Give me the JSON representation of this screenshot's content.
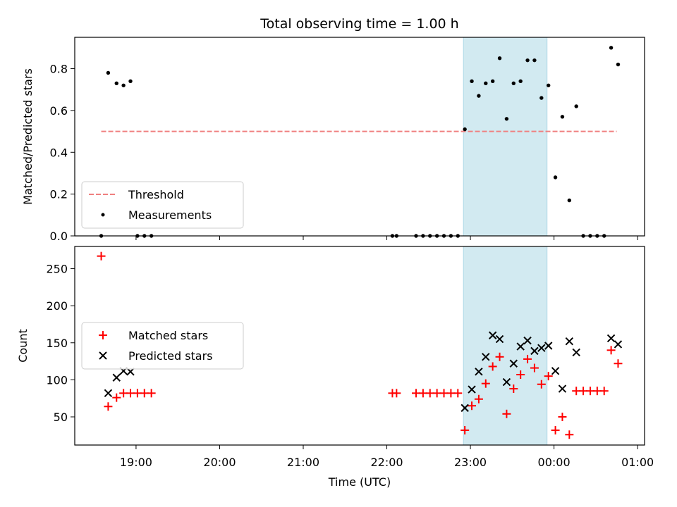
{
  "title": "Total observing time = 1.00 h",
  "colors": {
    "threshold": "#f08080",
    "measurement": "#000000",
    "matched": "#ff0000",
    "predicted": "#000000",
    "span": "#add8e6"
  },
  "chart_data": [
    {
      "type": "scatter",
      "ylabel": "Matched/Predicted stars",
      "xlabel": "",
      "ylim": [
        0,
        0.95
      ],
      "yticks": [
        0.0,
        0.2,
        0.4,
        0.6,
        0.8
      ],
      "ytick_labels": [
        "0.0",
        "0.2",
        "0.4",
        "0.6",
        "0.8"
      ],
      "legend": {
        "placement": "lower-left",
        "entries": [
          "Threshold",
          "Measurements"
        ]
      },
      "threshold": {
        "name": "Threshold",
        "y": 0.5,
        "x_start": "18:35",
        "x_end": "00:45"
      },
      "span": {
        "start": "22:55",
        "end": "23:55"
      },
      "series": [
        {
          "name": "Measurements",
          "points": [
            [
              "18:35",
              0.0
            ],
            [
              "18:40",
              0.78
            ],
            [
              "18:46",
              0.73
            ],
            [
              "18:51",
              0.72
            ],
            [
              "18:56",
              0.74
            ],
            [
              "19:01",
              0.0
            ],
            [
              "19:06",
              0.0
            ],
            [
              "19:11",
              0.0
            ],
            [
              "22:04",
              0.0
            ],
            [
              "22:07",
              0.0
            ],
            [
              "22:21",
              0.0
            ],
            [
              "22:26",
              0.0
            ],
            [
              "22:31",
              0.0
            ],
            [
              "22:36",
              0.0
            ],
            [
              "22:41",
              0.0
            ],
            [
              "22:46",
              0.0
            ],
            [
              "22:51",
              0.0
            ],
            [
              "22:56",
              0.51
            ],
            [
              "23:01",
              0.74
            ],
            [
              "23:06",
              0.67
            ],
            [
              "23:11",
              0.73
            ],
            [
              "23:16",
              0.74
            ],
            [
              "23:21",
              0.85
            ],
            [
              "23:26",
              0.56
            ],
            [
              "23:31",
              0.73
            ],
            [
              "23:36",
              0.74
            ],
            [
              "23:41",
              0.84
            ],
            [
              "23:46",
              0.84
            ],
            [
              "23:51",
              0.66
            ],
            [
              "23:56",
              0.72
            ],
            [
              "00:01",
              0.28
            ],
            [
              "00:06",
              0.57
            ],
            [
              "00:11",
              0.17
            ],
            [
              "00:16",
              0.62
            ],
            [
              "00:21",
              0.0
            ],
            [
              "00:26",
              0.0
            ],
            [
              "00:31",
              0.0
            ],
            [
              "00:36",
              0.0
            ],
            [
              "00:41",
              0.9
            ],
            [
              "00:46",
              0.82
            ]
          ]
        }
      ]
    },
    {
      "type": "scatter",
      "ylabel": "Count",
      "xlabel": "Time (UTC)",
      "ylim": [
        12,
        280
      ],
      "yticks": [
        50,
        100,
        150,
        200,
        250
      ],
      "ytick_labels": [
        "50",
        "100",
        "150",
        "200",
        "250"
      ],
      "xlim": [
        "18:16",
        "01:05"
      ],
      "xticks": [
        "19:00",
        "20:00",
        "21:00",
        "22:00",
        "23:00",
        "00:00",
        "01:00"
      ],
      "xtick_labels": [
        "19:00",
        "20:00",
        "21:00",
        "22:00",
        "23:00",
        "00:00",
        "01:00"
      ],
      "legend": {
        "placement": "center-left",
        "entries": [
          "Matched stars",
          "Predicted stars"
        ]
      },
      "span": {
        "start": "22:55",
        "end": "23:55"
      },
      "series": [
        {
          "name": "Matched stars",
          "marker": "plus",
          "points": [
            [
              "18:35",
              267
            ],
            [
              "18:40",
              64
            ],
            [
              "18:46",
              76
            ],
            [
              "18:51",
              82
            ],
            [
              "18:56",
              82
            ],
            [
              "19:01",
              82
            ],
            [
              "19:06",
              82
            ],
            [
              "19:11",
              82
            ],
            [
              "22:04",
              82
            ],
            [
              "22:07",
              82
            ],
            [
              "22:21",
              82
            ],
            [
              "22:26",
              82
            ],
            [
              "22:31",
              82
            ],
            [
              "22:36",
              82
            ],
            [
              "22:41",
              82
            ],
            [
              "22:46",
              82
            ],
            [
              "22:51",
              82
            ],
            [
              "22:56",
              32
            ],
            [
              "23:01",
              65
            ],
            [
              "23:06",
              74
            ],
            [
              "23:11",
              95
            ],
            [
              "23:16",
              118
            ],
            [
              "23:21",
              131
            ],
            [
              "23:26",
              54
            ],
            [
              "23:31",
              88
            ],
            [
              "23:36",
              107
            ],
            [
              "23:41",
              128
            ],
            [
              "23:46",
              116
            ],
            [
              "23:51",
              94
            ],
            [
              "23:56",
              105
            ],
            [
              "00:01",
              32
            ],
            [
              "00:06",
              50
            ],
            [
              "00:11",
              26
            ],
            [
              "00:16",
              85
            ],
            [
              "00:21",
              85
            ],
            [
              "00:26",
              85
            ],
            [
              "00:31",
              85
            ],
            [
              "00:36",
              85
            ],
            [
              "00:41",
              140
            ],
            [
              "00:46",
              122
            ]
          ]
        },
        {
          "name": "Predicted stars",
          "marker": "x",
          "points": [
            [
              "18:40",
              82
            ],
            [
              "18:46",
              103
            ],
            [
              "18:51",
              112
            ],
            [
              "18:56",
              111
            ],
            [
              "22:56",
              62
            ],
            [
              "23:01",
              87
            ],
            [
              "23:06",
              111
            ],
            [
              "23:11",
              131
            ],
            [
              "23:16",
              160
            ],
            [
              "23:21",
              155
            ],
            [
              "23:26",
              97
            ],
            [
              "23:31",
              122
            ],
            [
              "23:36",
              145
            ],
            [
              "23:41",
              153
            ],
            [
              "23:46",
              139
            ],
            [
              "23:51",
              143
            ],
            [
              "23:56",
              146
            ],
            [
              "00:01",
              112
            ],
            [
              "00:06",
              88
            ],
            [
              "00:11",
              152
            ],
            [
              "00:16",
              137
            ],
            [
              "00:41",
              156
            ],
            [
              "00:46",
              148
            ]
          ]
        }
      ]
    }
  ]
}
